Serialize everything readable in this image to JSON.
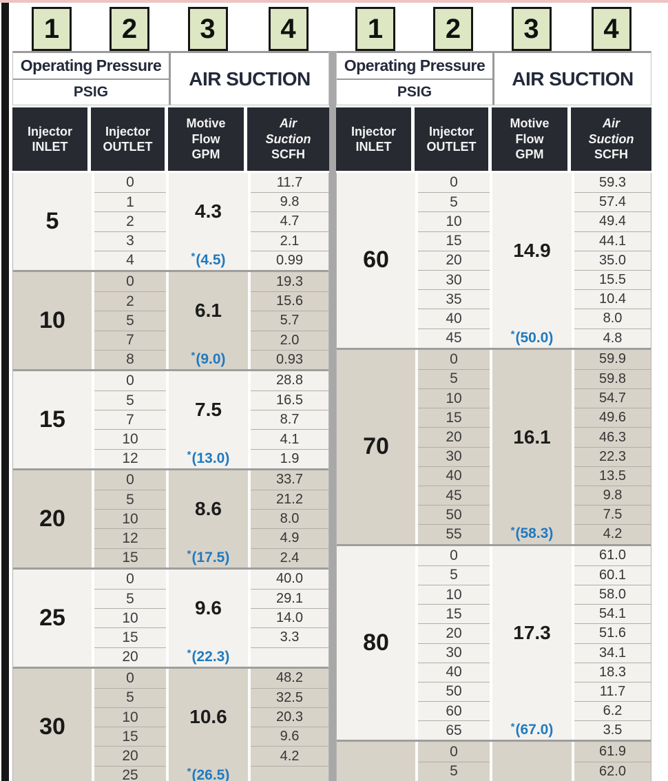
{
  "badges": [
    "1",
    "2",
    "3",
    "4"
  ],
  "header": {
    "operating_pressure": "Operating Pressure",
    "psig": "PSIG",
    "air_suction": "AIR SUCTION",
    "col_inlet": "Injector\nINLET",
    "col_outlet": "Injector\nOUTLET",
    "col_flow": "Motive\nFlow\nGPM",
    "col_suction_italic": "Air\nSuction",
    "col_suction_unit": "SCFH"
  },
  "colors": {
    "badge_green": "#dde7c3",
    "header_dark": "#272a31",
    "group_light": "#f4f2ee",
    "group_tan": "#d8d3c9",
    "star_blue": "#1f7ac0",
    "divider_gray": "#a8a8a8",
    "edge_black": "#161616",
    "top_pink": "#eec3c2"
  },
  "left_table": {
    "groups": [
      {
        "inlet": "5",
        "flow": "4.3",
        "flow_star": "*(4.5)",
        "rows": [
          {
            "outlet": "0",
            "suction": "11.7"
          },
          {
            "outlet": "1",
            "suction": "9.8"
          },
          {
            "outlet": "2",
            "suction": "4.7"
          },
          {
            "outlet": "3",
            "suction": "2.1"
          },
          {
            "outlet": "4",
            "suction": "0.99"
          }
        ]
      },
      {
        "inlet": "10",
        "flow": "6.1",
        "flow_star": "*(9.0)",
        "rows": [
          {
            "outlet": "0",
            "suction": "19.3"
          },
          {
            "outlet": "2",
            "suction": "15.6"
          },
          {
            "outlet": "5",
            "suction": "5.7"
          },
          {
            "outlet": "7",
            "suction": "2.0"
          },
          {
            "outlet": "8",
            "suction": "0.93"
          }
        ]
      },
      {
        "inlet": "15",
        "flow": "7.5",
        "flow_star": "*(13.0)",
        "rows": [
          {
            "outlet": "0",
            "suction": "28.8"
          },
          {
            "outlet": "5",
            "suction": "16.5"
          },
          {
            "outlet": "7",
            "suction": "8.7"
          },
          {
            "outlet": "10",
            "suction": "4.1"
          },
          {
            "outlet": "12",
            "suction": "1.9"
          }
        ]
      },
      {
        "inlet": "20",
        "flow": "8.6",
        "flow_star": "*(17.5)",
        "rows": [
          {
            "outlet": "0",
            "suction": "33.7"
          },
          {
            "outlet": "5",
            "suction": "21.2"
          },
          {
            "outlet": "10",
            "suction": "8.0"
          },
          {
            "outlet": "12",
            "suction": "4.9"
          },
          {
            "outlet": "15",
            "suction": "2.4"
          }
        ]
      },
      {
        "inlet": "25",
        "flow": "9.6",
        "flow_star": "*(22.3)",
        "rows": [
          {
            "outlet": "0",
            "suction": "40.0"
          },
          {
            "outlet": "5",
            "suction": "29.1"
          },
          {
            "outlet": "10",
            "suction": "14.0"
          },
          {
            "outlet": "15",
            "suction": "3.3"
          },
          {
            "outlet": "20",
            "suction": ""
          }
        ]
      },
      {
        "inlet": "30",
        "flow": "10.6",
        "flow_star": "*(26.5)",
        "rows": [
          {
            "outlet": "0",
            "suction": "48.2"
          },
          {
            "outlet": "5",
            "suction": "32.5"
          },
          {
            "outlet": "10",
            "suction": "20.3"
          },
          {
            "outlet": "15",
            "suction": "9.6"
          },
          {
            "outlet": "20",
            "suction": "4.2"
          },
          {
            "outlet": "25",
            "suction": ""
          }
        ]
      }
    ]
  },
  "right_table": {
    "groups": [
      {
        "inlet": "60",
        "flow": "14.9",
        "flow_star": "*(50.0)",
        "rows": [
          {
            "outlet": "0",
            "suction": "59.3"
          },
          {
            "outlet": "5",
            "suction": "57.4"
          },
          {
            "outlet": "10",
            "suction": "49.4"
          },
          {
            "outlet": "15",
            "suction": "44.1"
          },
          {
            "outlet": "20",
            "suction": "35.0"
          },
          {
            "outlet": "30",
            "suction": "15.5"
          },
          {
            "outlet": "35",
            "suction": "10.4"
          },
          {
            "outlet": "40",
            "suction": "8.0"
          },
          {
            "outlet": "45",
            "suction": "4.8"
          }
        ]
      },
      {
        "inlet": "70",
        "flow": "16.1",
        "flow_star": "*(58.3)",
        "rows": [
          {
            "outlet": "0",
            "suction": "59.9"
          },
          {
            "outlet": "5",
            "suction": "59.8"
          },
          {
            "outlet": "10",
            "suction": "54.7"
          },
          {
            "outlet": "15",
            "suction": "49.6"
          },
          {
            "outlet": "20",
            "suction": "46.3"
          },
          {
            "outlet": "30",
            "suction": "22.3"
          },
          {
            "outlet": "40",
            "suction": "13.5"
          },
          {
            "outlet": "45",
            "suction": "9.8"
          },
          {
            "outlet": "50",
            "suction": "7.5"
          },
          {
            "outlet": "55",
            "suction": "4.2"
          }
        ]
      },
      {
        "inlet": "80",
        "flow": "17.3",
        "flow_star": "*(67.0)",
        "rows": [
          {
            "outlet": "0",
            "suction": "61.0"
          },
          {
            "outlet": "5",
            "suction": "60.1"
          },
          {
            "outlet": "10",
            "suction": "58.0"
          },
          {
            "outlet": "15",
            "suction": "54.1"
          },
          {
            "outlet": "20",
            "suction": "51.6"
          },
          {
            "outlet": "30",
            "suction": "34.1"
          },
          {
            "outlet": "40",
            "suction": "18.3"
          },
          {
            "outlet": "50",
            "suction": "11.7"
          },
          {
            "outlet": "60",
            "suction": "6.2"
          },
          {
            "outlet": "65",
            "suction": "3.5"
          }
        ]
      },
      {
        "inlet": "",
        "flow": "",
        "flow_star": "",
        "rows": [
          {
            "outlet": "0",
            "suction": "61.9"
          },
          {
            "outlet": "5",
            "suction": "62.0"
          }
        ]
      }
    ]
  }
}
